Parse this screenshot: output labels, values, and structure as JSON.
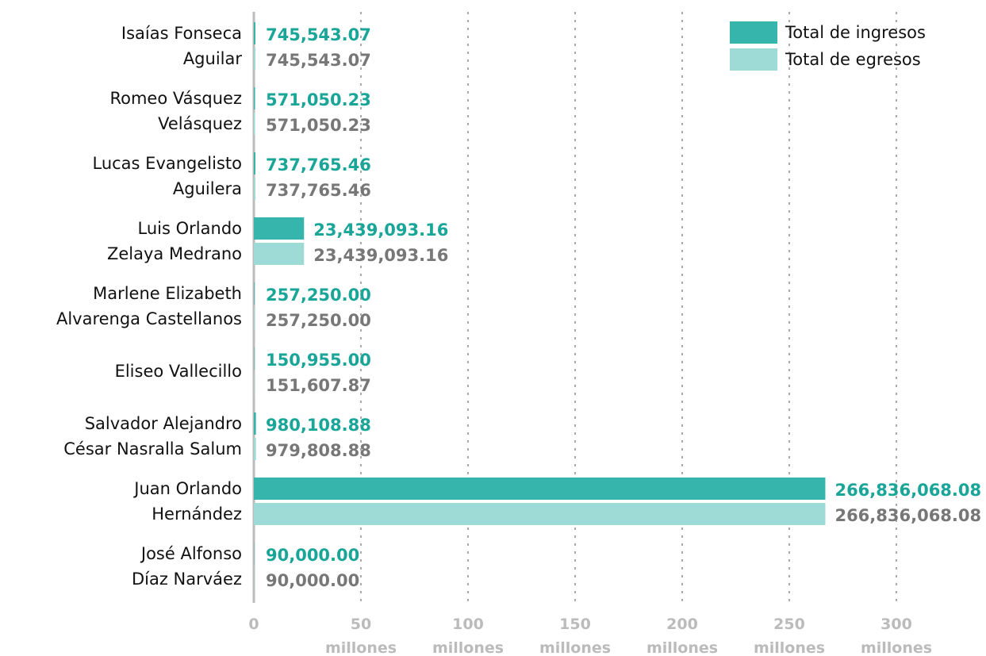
{
  "chart_data": {
    "type": "hbar",
    "categories": [
      "Isaías Fonseca\nAguilar",
      "Romeo Vásquez\nVelásquez",
      "Lucas Evangelisto\nAguilera",
      "Luis Orlando\nZelaya Medrano",
      "Marlene Elizabeth\nAlvarenga Castellanos",
      "Eliseo Vallecillo",
      "Salvador Alejandro\nCésar Nasralla Salum",
      "Juan Orlando\nHernández",
      "José Alfonso\nDíaz Narváez"
    ],
    "series": [
      {
        "name": "Total de ingresos",
        "color": "#35b5ab",
        "label_color": "#19a597",
        "values": [
          745543.07,
          571050.23,
          737765.46,
          23439093.16,
          257250.0,
          150955.0,
          980108.88,
          266836068.08,
          90000.0
        ],
        "value_labels": [
          "745,543.07",
          "571,050.23",
          "737,765.46",
          "23,439,093.16",
          "257,250.00",
          "150,955.00",
          "980,108.88",
          "266,836,068.08",
          "90,000.00"
        ]
      },
      {
        "name": "Total de egresos",
        "color": "#9fdbd6",
        "label_color": "#777777",
        "values": [
          745543.07,
          571050.23,
          737765.46,
          23439093.16,
          257250.0,
          151607.87,
          979808.88,
          266836068.08,
          90000.0
        ],
        "value_labels": [
          "745,543.07",
          "571,050.23",
          "737,765.46",
          "23,439,093.16",
          "257,250.00",
          "151,607.87",
          "979,808.88",
          "266,836,068.08",
          "90,000.00"
        ]
      }
    ],
    "xlim": [
      0,
      310000000
    ],
    "xticks": [
      0,
      {
        "value": 50000000,
        "label": "50\nmillones"
      },
      {
        "value": 100000000,
        "label": "100\nmillones"
      },
      {
        "value": 150000000,
        "label": "150\nmillones"
      },
      {
        "value": 200000000,
        "label": "200\nmillones"
      },
      {
        "value": 250000000,
        "label": "250\nmillones"
      },
      {
        "value": 300000000,
        "label": "300\nmillones"
      }
    ],
    "grid": true,
    "legend": "top-right"
  }
}
